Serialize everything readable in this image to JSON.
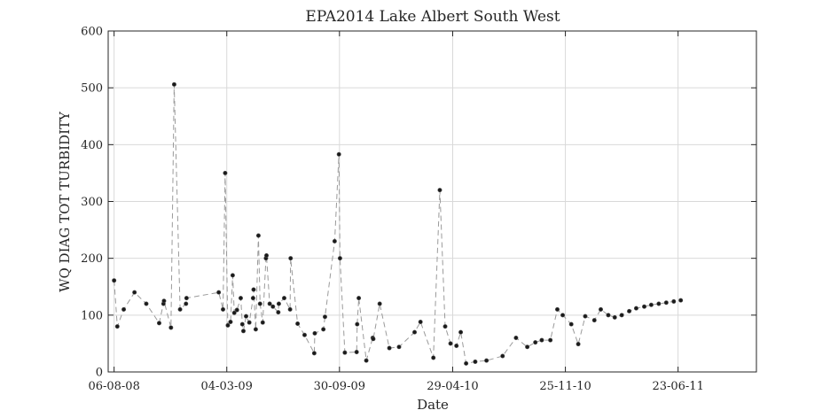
{
  "chart_data": {
    "type": "scatter",
    "title": "EPA2014 Lake Albert South West",
    "xlabel": "Date",
    "ylabel": "WQ DIAG TOT TURBIDITY",
    "xlim": [
      "2008-07-26",
      "2011-11-16"
    ],
    "ylim": [
      0,
      600
    ],
    "x_ticks": [
      "06-08-08",
      "04-03-09",
      "30-09-09",
      "29-04-10",
      "25-11-10",
      "23-06-11"
    ],
    "y_ticks": [
      0,
      100,
      200,
      300,
      400,
      500,
      600
    ],
    "grid": true,
    "legend": "none",
    "series": [
      {
        "line_style": "dashed",
        "color": "#9a9a9a",
        "marker_color": "#1a1a1a",
        "x": [
          "2008-08-06",
          "2008-08-12",
          "2008-08-24",
          "2008-09-13",
          "2008-10-05",
          "2008-10-29",
          "2008-11-06",
          "2008-11-07",
          "2008-11-20",
          "2008-11-26",
          "2008-12-07",
          "2008-12-18",
          "2008-12-19",
          "2009-02-17",
          "2009-02-25",
          "2009-03-01",
          "2009-03-06",
          "2009-03-11",
          "2009-03-15",
          "2009-03-18",
          "2009-03-23",
          "2009-03-30",
          "2009-04-02",
          "2009-04-04",
          "2009-04-09",
          "2009-04-15",
          "2009-04-22",
          "2009-04-23",
          "2009-04-27",
          "2009-05-02",
          "2009-05-05",
          "2009-05-10",
          "2009-05-16",
          "2009-05-17",
          "2009-05-23",
          "2009-05-29",
          "2009-06-08",
          "2009-06-09",
          "2009-06-19",
          "2009-06-30",
          "2009-07-01",
          "2009-07-14",
          "2009-07-27",
          "2009-08-14",
          "2009-08-15",
          "2009-08-31",
          "2009-09-03",
          "2009-09-21",
          "2009-09-29",
          "2009-10-01",
          "2009-10-10",
          "2009-11-01",
          "2009-11-02",
          "2009-11-05",
          "2009-11-19",
          "2009-12-01",
          "2009-12-02",
          "2009-12-14",
          "2010-01-01",
          "2010-01-19",
          "2010-02-17",
          "2010-02-28",
          "2010-03-24",
          "2010-04-05",
          "2010-04-15",
          "2010-04-25",
          "2010-05-06",
          "2010-05-14",
          "2010-05-24",
          "2010-06-10",
          "2010-07-01",
          "2010-07-31",
          "2010-08-25",
          "2010-09-15",
          "2010-09-30",
          "2010-10-12",
          "2010-10-28",
          "2010-11-10",
          "2010-11-20",
          "2010-12-06",
          "2010-12-19",
          "2011-01-01",
          "2011-01-18",
          "2011-01-30",
          "2011-02-13",
          "2011-02-25",
          "2011-03-10",
          "2011-03-24",
          "2011-04-06",
          "2011-04-21",
          "2011-05-04",
          "2011-05-18",
          "2011-06-01",
          "2011-06-15",
          "2011-06-28"
        ],
        "y": [
          161,
          80,
          110,
          140,
          120,
          86,
          120,
          125,
          78,
          506,
          110,
          120,
          130,
          140,
          110,
          350,
          82,
          88,
          170,
          104,
          109,
          130,
          84,
          72,
          98,
          87,
          130,
          145,
          75,
          240,
          120,
          87,
          200,
          205,
          120,
          115,
          105,
          120,
          130,
          110,
          200,
          85,
          65,
          33,
          68,
          75,
          97,
          230,
          383,
          200,
          34,
          35,
          84,
          130,
          20,
          60,
          58,
          120,
          42,
          44,
          70,
          88,
          25,
          320,
          80,
          50,
          46,
          70,
          15,
          18,
          20,
          28,
          60,
          44,
          52,
          56,
          56,
          110,
          100,
          84,
          49,
          98,
          91,
          110,
          100,
          96,
          100,
          107,
          112,
          115,
          118,
          120,
          122,
          124,
          126
        ]
      }
    ]
  }
}
